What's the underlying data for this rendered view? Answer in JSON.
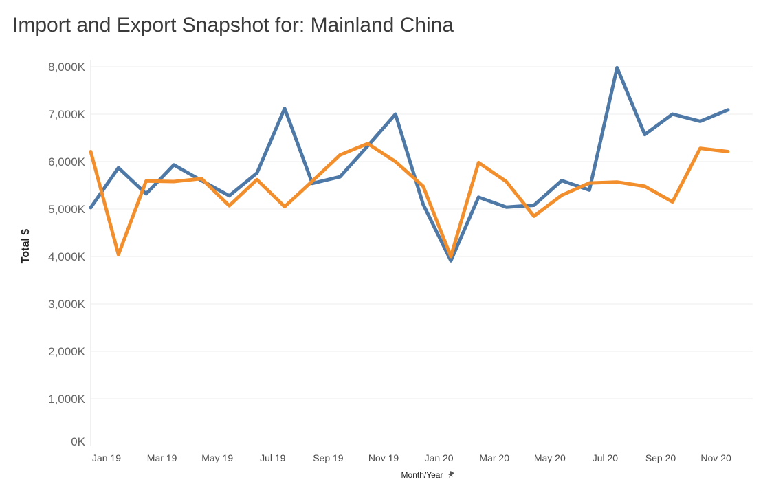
{
  "page": {
    "title": "Import and Export Snapshot for: Mainland China"
  },
  "chart_data": {
    "type": "line",
    "title": "Import and Export Snapshot for: Mainland China",
    "xlabel": "Month/Year",
    "ylabel": "Total $",
    "x": [
      "Jan 19",
      "Feb 19",
      "Mar 19",
      "Apr 19",
      "May 19",
      "Jun 19",
      "Jul 19",
      "Aug 19",
      "Sep 19",
      "Oct 19",
      "Nov 19",
      "Dec 19",
      "Jan 20",
      "Feb 20",
      "Mar 20",
      "Apr 20",
      "May 20",
      "Jun 20",
      "Jul 20",
      "Aug 20",
      "Sep 20",
      "Oct 20",
      "Nov 20",
      "Dec 20"
    ],
    "x_tick_labels": [
      "Jan 19",
      "Mar 19",
      "May 19",
      "Jul 19",
      "Sep 19",
      "Nov 19",
      "Jan 20",
      "Mar 20",
      "May 20",
      "Jul 20",
      "Sep 20",
      "Nov 20"
    ],
    "y_ticks": [
      0,
      1000,
      2000,
      3000,
      4000,
      5000,
      6000,
      7000,
      8000
    ],
    "y_tick_labels": [
      "0K",
      "1,000K",
      "2,000K",
      "3,000K",
      "4,000K",
      "5,000K",
      "6,000K",
      "7,000K",
      "8,000K"
    ],
    "ylim": [
      0,
      8000
    ],
    "y_units": "thousands of dollars",
    "grid": true,
    "series": [
      {
        "color": "#4e79a7",
        "values": [
          5030,
          5870,
          5320,
          5930,
          5600,
          5280,
          5760,
          7120,
          5540,
          5680,
          6330,
          7000,
          5100,
          3910,
          5250,
          5040,
          5080,
          5600,
          5400,
          7980,
          6570,
          7000,
          6850,
          7090
        ]
      },
      {
        "color": "#f28e2b",
        "values": [
          6210,
          4040,
          5590,
          5580,
          5640,
          5070,
          5620,
          5050,
          5590,
          6140,
          6380,
          6000,
          5480,
          4000,
          5980,
          5580,
          4850,
          5290,
          5550,
          5570,
          5480,
          5150,
          6280,
          6210
        ]
      }
    ]
  }
}
